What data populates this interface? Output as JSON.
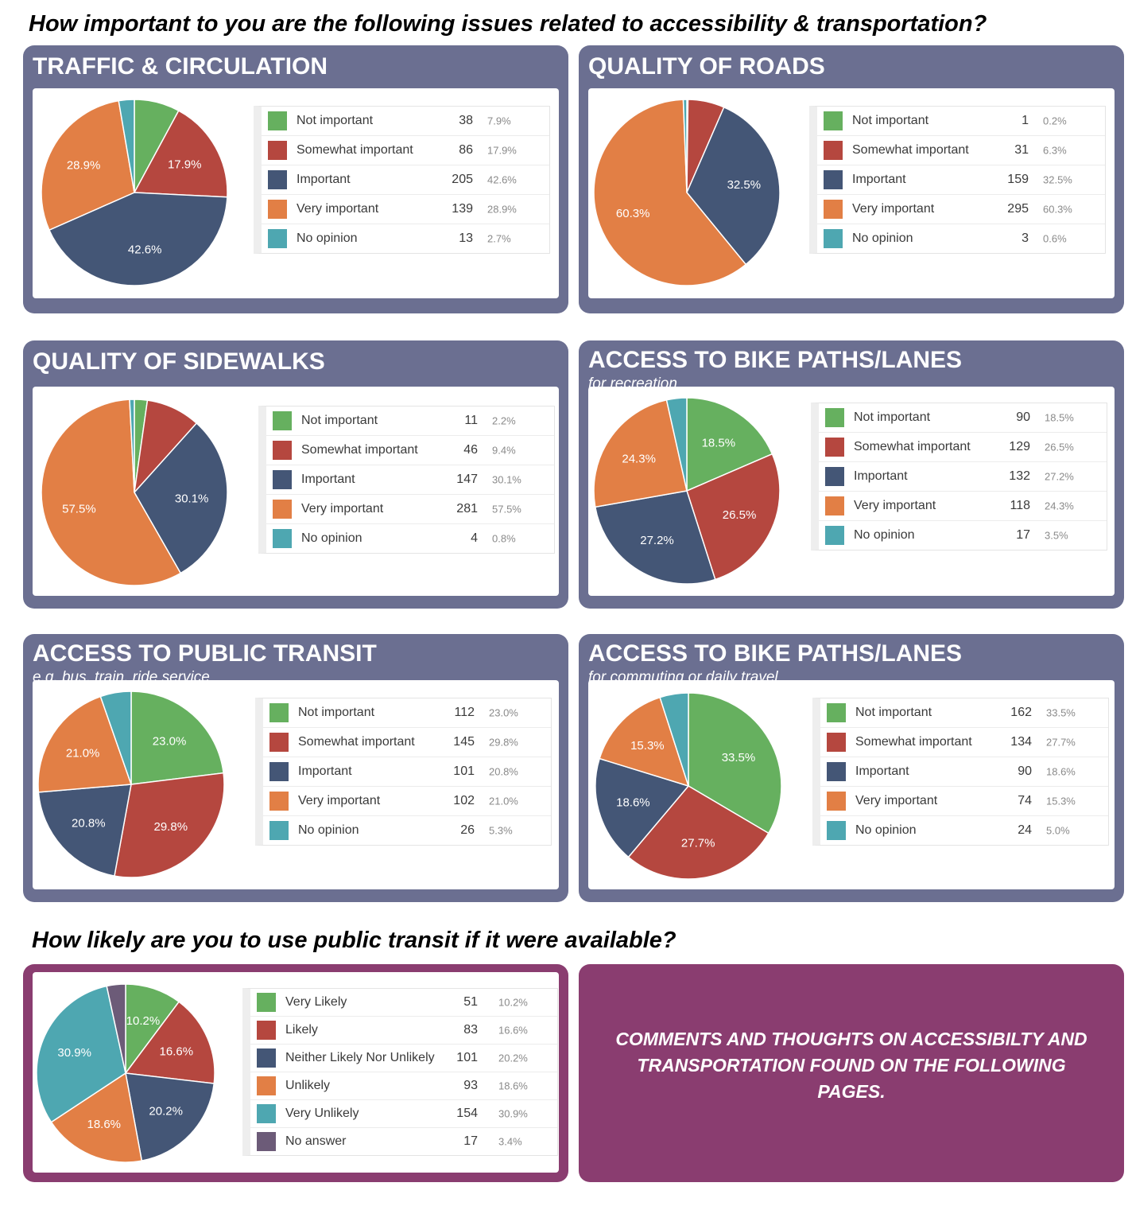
{
  "heading1": "How important to you are the following issues related to accessibility & transportation?",
  "heading2": "How likely are you to use public transit if it were available?",
  "comments": "COMMENTS AND THOUGHTS ON ACCESSIBILTY AND TRANSPORTATION FOUND ON THE FOLLOWING PAGES.",
  "colors": {
    "panel_blue": "#6b6f91",
    "panel_purple": "#8a3d70",
    "green": "#66b05f",
    "red": "#b5473f",
    "navy": "#445676",
    "orange": "#e27f45",
    "teal": "#4ea7b1",
    "mauve": "#6c5b78"
  },
  "chart_data": [
    {
      "type": "pie",
      "title": "TRAFFIC & CIRCULATION",
      "subtitle": "",
      "slices": [
        {
          "label": "Not important",
          "count": 38,
          "percent": 7.9,
          "color": "#66b05f"
        },
        {
          "label": "Somewhat important",
          "count": 86,
          "percent": 17.9,
          "color": "#b5473f"
        },
        {
          "label": "Important",
          "count": 205,
          "percent": 42.6,
          "color": "#445676"
        },
        {
          "label": "Very important",
          "count": 139,
          "percent": 28.9,
          "color": "#e27f45"
        },
        {
          "label": "No opinion",
          "count": 13,
          "percent": 2.7,
          "color": "#4ea7b1"
        }
      ]
    },
    {
      "type": "pie",
      "title": "QUALITY OF ROADS",
      "subtitle": "",
      "slices": [
        {
          "label": "Not important",
          "count": 1,
          "percent": 0.2,
          "color": "#66b05f"
        },
        {
          "label": "Somewhat important",
          "count": 31,
          "percent": 6.3,
          "color": "#b5473f"
        },
        {
          "label": "Important",
          "count": 159,
          "percent": 32.5,
          "color": "#445676"
        },
        {
          "label": "Very important",
          "count": 295,
          "percent": 60.3,
          "color": "#e27f45"
        },
        {
          "label": "No opinion",
          "count": 3,
          "percent": 0.6,
          "color": "#4ea7b1"
        }
      ]
    },
    {
      "type": "pie",
      "title": "QUALITY OF SIDEWALKS",
      "subtitle": "",
      "slices": [
        {
          "label": "Not important",
          "count": 11,
          "percent": 2.2,
          "color": "#66b05f"
        },
        {
          "label": "Somewhat important",
          "count": 46,
          "percent": 9.4,
          "color": "#b5473f"
        },
        {
          "label": "Important",
          "count": 147,
          "percent": 30.1,
          "color": "#445676"
        },
        {
          "label": "Very important",
          "count": 281,
          "percent": 57.5,
          "color": "#e27f45"
        },
        {
          "label": "No opinion",
          "count": 4,
          "percent": 0.8,
          "color": "#4ea7b1"
        }
      ]
    },
    {
      "type": "pie",
      "title": "ACCESS TO BIKE PATHS/LANES",
      "subtitle": "for recreation",
      "slices": [
        {
          "label": "Not important",
          "count": 90,
          "percent": 18.5,
          "color": "#66b05f"
        },
        {
          "label": "Somewhat important",
          "count": 129,
          "percent": 26.5,
          "color": "#b5473f"
        },
        {
          "label": "Important",
          "count": 132,
          "percent": 27.2,
          "color": "#445676"
        },
        {
          "label": "Very important",
          "count": 118,
          "percent": 24.3,
          "color": "#e27f45"
        },
        {
          "label": "No opinion",
          "count": 17,
          "percent": 3.5,
          "color": "#4ea7b1"
        }
      ]
    },
    {
      "type": "pie",
      "title": "ACCESS TO PUBLIC TRANSIT",
      "subtitle": "e.g. bus, train, ride service",
      "slices": [
        {
          "label": "Not important",
          "count": 112,
          "percent": 23.0,
          "color": "#66b05f"
        },
        {
          "label": "Somewhat important",
          "count": 145,
          "percent": 29.8,
          "color": "#b5473f"
        },
        {
          "label": "Important",
          "count": 101,
          "percent": 20.8,
          "color": "#445676"
        },
        {
          "label": "Very important",
          "count": 102,
          "percent": 21.0,
          "color": "#e27f45"
        },
        {
          "label": "No opinion",
          "count": 26,
          "percent": 5.3,
          "color": "#4ea7b1"
        }
      ]
    },
    {
      "type": "pie",
      "title": "ACCESS TO BIKE PATHS/LANES",
      "subtitle": "for commuting or daily travel",
      "slices": [
        {
          "label": "Not important",
          "count": 162,
          "percent": 33.5,
          "color": "#66b05f"
        },
        {
          "label": "Somewhat important",
          "count": 134,
          "percent": 27.7,
          "color": "#b5473f"
        },
        {
          "label": "Important",
          "count": 90,
          "percent": 18.6,
          "color": "#445676"
        },
        {
          "label": "Very important",
          "count": 74,
          "percent": 15.3,
          "color": "#e27f45"
        },
        {
          "label": "No opinion",
          "count": 24,
          "percent": 5.0,
          "color": "#4ea7b1"
        }
      ]
    },
    {
      "type": "pie",
      "title": "",
      "subtitle": "",
      "slices": [
        {
          "label": "Very Likely",
          "count": 51,
          "percent": 10.2,
          "color": "#66b05f"
        },
        {
          "label": "Likely",
          "count": 83,
          "percent": 16.6,
          "color": "#b5473f"
        },
        {
          "label": "Neither Likely Nor Unlikely",
          "count": 101,
          "percent": 20.2,
          "color": "#445676"
        },
        {
          "label": "Unlikely",
          "count": 93,
          "percent": 18.6,
          "color": "#e27f45"
        },
        {
          "label": "Very Unlikely",
          "count": 154,
          "percent": 30.9,
          "color": "#4ea7b1"
        },
        {
          "label": "No answer",
          "count": 17,
          "percent": 3.4,
          "color": "#6c5b78"
        }
      ]
    }
  ]
}
